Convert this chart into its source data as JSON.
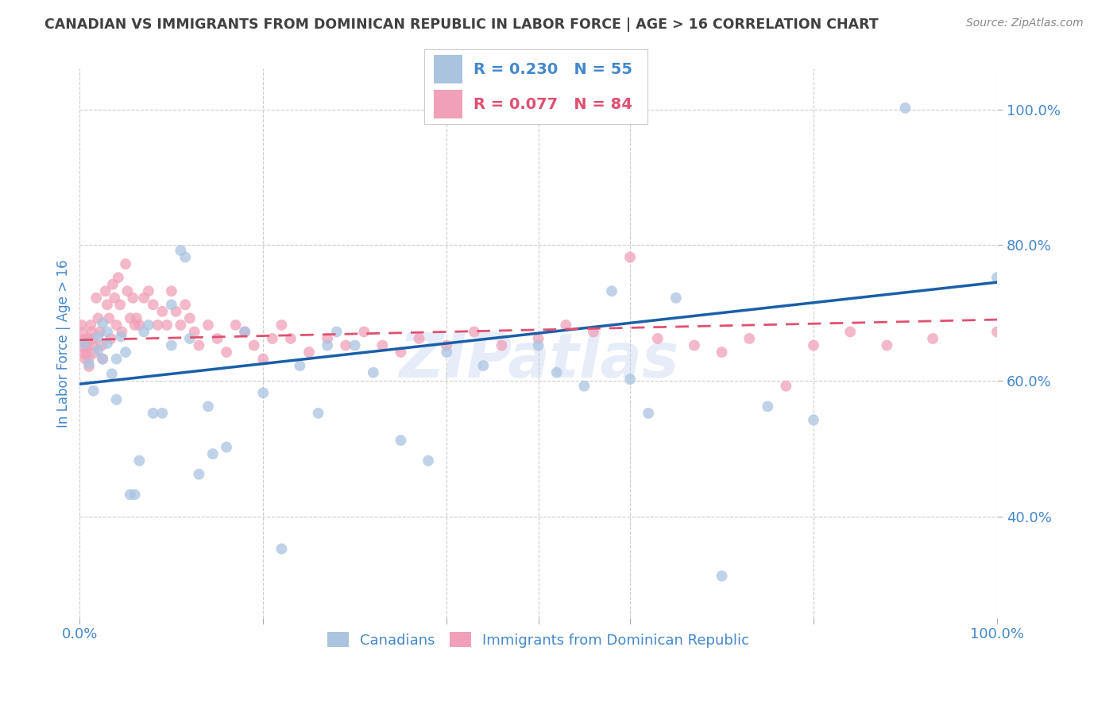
{
  "title": "CANADIAN VS IMMIGRANTS FROM DOMINICAN REPUBLIC IN LABOR FORCE | AGE > 16 CORRELATION CHART",
  "source": "Source: ZipAtlas.com",
  "ylabel": "In Labor Force | Age > 16",
  "watermark": "ZIPatlas",
  "canadians": {
    "R": 0.23,
    "N": 55,
    "color": "#aac4e0",
    "line_color": "#1a5fa8",
    "label": "Canadians",
    "x": [
      0.005,
      0.01,
      0.015,
      0.02,
      0.02,
      0.025,
      0.025,
      0.03,
      0.03,
      0.035,
      0.04,
      0.04,
      0.045,
      0.05,
      0.055,
      0.06,
      0.065,
      0.07,
      0.075,
      0.08,
      0.09,
      0.1,
      0.1,
      0.11,
      0.115,
      0.12,
      0.13,
      0.14,
      0.145,
      0.16,
      0.18,
      0.2,
      0.22,
      0.24,
      0.26,
      0.27,
      0.28,
      0.3,
      0.32,
      0.35,
      0.38,
      0.4,
      0.44,
      0.5,
      0.52,
      0.55,
      0.58,
      0.6,
      0.62,
      0.65,
      0.7,
      0.75,
      0.8,
      0.9,
      1.0
    ],
    "y": [
      0.655,
      0.625,
      0.585,
      0.645,
      0.665,
      0.685,
      0.632,
      0.655,
      0.672,
      0.61,
      0.632,
      0.572,
      0.665,
      0.642,
      0.432,
      0.432,
      0.482,
      0.672,
      0.682,
      0.552,
      0.552,
      0.652,
      0.712,
      0.792,
      0.782,
      0.662,
      0.462,
      0.562,
      0.492,
      0.502,
      0.672,
      0.582,
      0.352,
      0.622,
      0.552,
      0.652,
      0.672,
      0.652,
      0.612,
      0.512,
      0.482,
      0.642,
      0.622,
      0.652,
      0.612,
      0.592,
      0.732,
      0.602,
      0.552,
      0.722,
      0.312,
      0.562,
      0.542,
      1.002,
      0.752
    ],
    "trend_x": [
      0.0,
      1.0
    ],
    "trend_y": [
      0.595,
      0.745
    ]
  },
  "immigrants": {
    "R": 0.077,
    "N": 84,
    "color": "#f0a0b8",
    "line_color": "#e05070",
    "label": "Immigrants from Dominican Republic",
    "x": [
      0.002,
      0.003,
      0.004,
      0.005,
      0.005,
      0.006,
      0.007,
      0.008,
      0.009,
      0.01,
      0.01,
      0.012,
      0.013,
      0.014,
      0.015,
      0.016,
      0.018,
      0.02,
      0.022,
      0.024,
      0.025,
      0.028,
      0.03,
      0.032,
      0.034,
      0.036,
      0.038,
      0.04,
      0.042,
      0.044,
      0.046,
      0.05,
      0.052,
      0.055,
      0.058,
      0.06,
      0.062,
      0.065,
      0.07,
      0.075,
      0.08,
      0.085,
      0.09,
      0.095,
      0.1,
      0.105,
      0.11,
      0.115,
      0.12,
      0.125,
      0.13,
      0.14,
      0.15,
      0.16,
      0.17,
      0.18,
      0.19,
      0.2,
      0.21,
      0.22,
      0.23,
      0.25,
      0.27,
      0.29,
      0.31,
      0.33,
      0.35,
      0.37,
      0.4,
      0.43,
      0.46,
      0.5,
      0.53,
      0.56,
      0.6,
      0.63,
      0.67,
      0.7,
      0.73,
      0.77,
      0.8,
      0.84,
      0.88,
      0.93,
      1.0
    ],
    "y": [
      0.682,
      0.671,
      0.661,
      0.65,
      0.64,
      0.632,
      0.641,
      0.651,
      0.662,
      0.633,
      0.621,
      0.682,
      0.672,
      0.661,
      0.651,
      0.641,
      0.722,
      0.692,
      0.672,
      0.652,
      0.632,
      0.732,
      0.712,
      0.692,
      0.662,
      0.742,
      0.722,
      0.682,
      0.752,
      0.712,
      0.672,
      0.772,
      0.732,
      0.692,
      0.722,
      0.682,
      0.692,
      0.682,
      0.722,
      0.732,
      0.712,
      0.682,
      0.702,
      0.682,
      0.732,
      0.702,
      0.682,
      0.712,
      0.692,
      0.672,
      0.652,
      0.682,
      0.662,
      0.642,
      0.682,
      0.672,
      0.652,
      0.632,
      0.662,
      0.682,
      0.662,
      0.642,
      0.662,
      0.652,
      0.672,
      0.652,
      0.642,
      0.662,
      0.652,
      0.672,
      0.652,
      0.662,
      0.682,
      0.672,
      0.782,
      0.662,
      0.652,
      0.642,
      0.662,
      0.592,
      0.652,
      0.672,
      0.652,
      0.662,
      0.672
    ],
    "trend_x": [
      0.0,
      1.0
    ],
    "trend_y": [
      0.66,
      0.69
    ]
  },
  "xlim": [
    0.0,
    1.0
  ],
  "ylim": [
    0.25,
    1.06
  ],
  "yticks": [
    0.4,
    0.6,
    0.8,
    1.0
  ],
  "ytick_labels": [
    "40.0%",
    "60.0%",
    "80.0%",
    "100.0%"
  ],
  "bg_color": "#ffffff",
  "grid_color": "#cccccc",
  "title_color": "#404040",
  "tick_color": "#4488cc",
  "legend_box_color": "#f0f0f8"
}
